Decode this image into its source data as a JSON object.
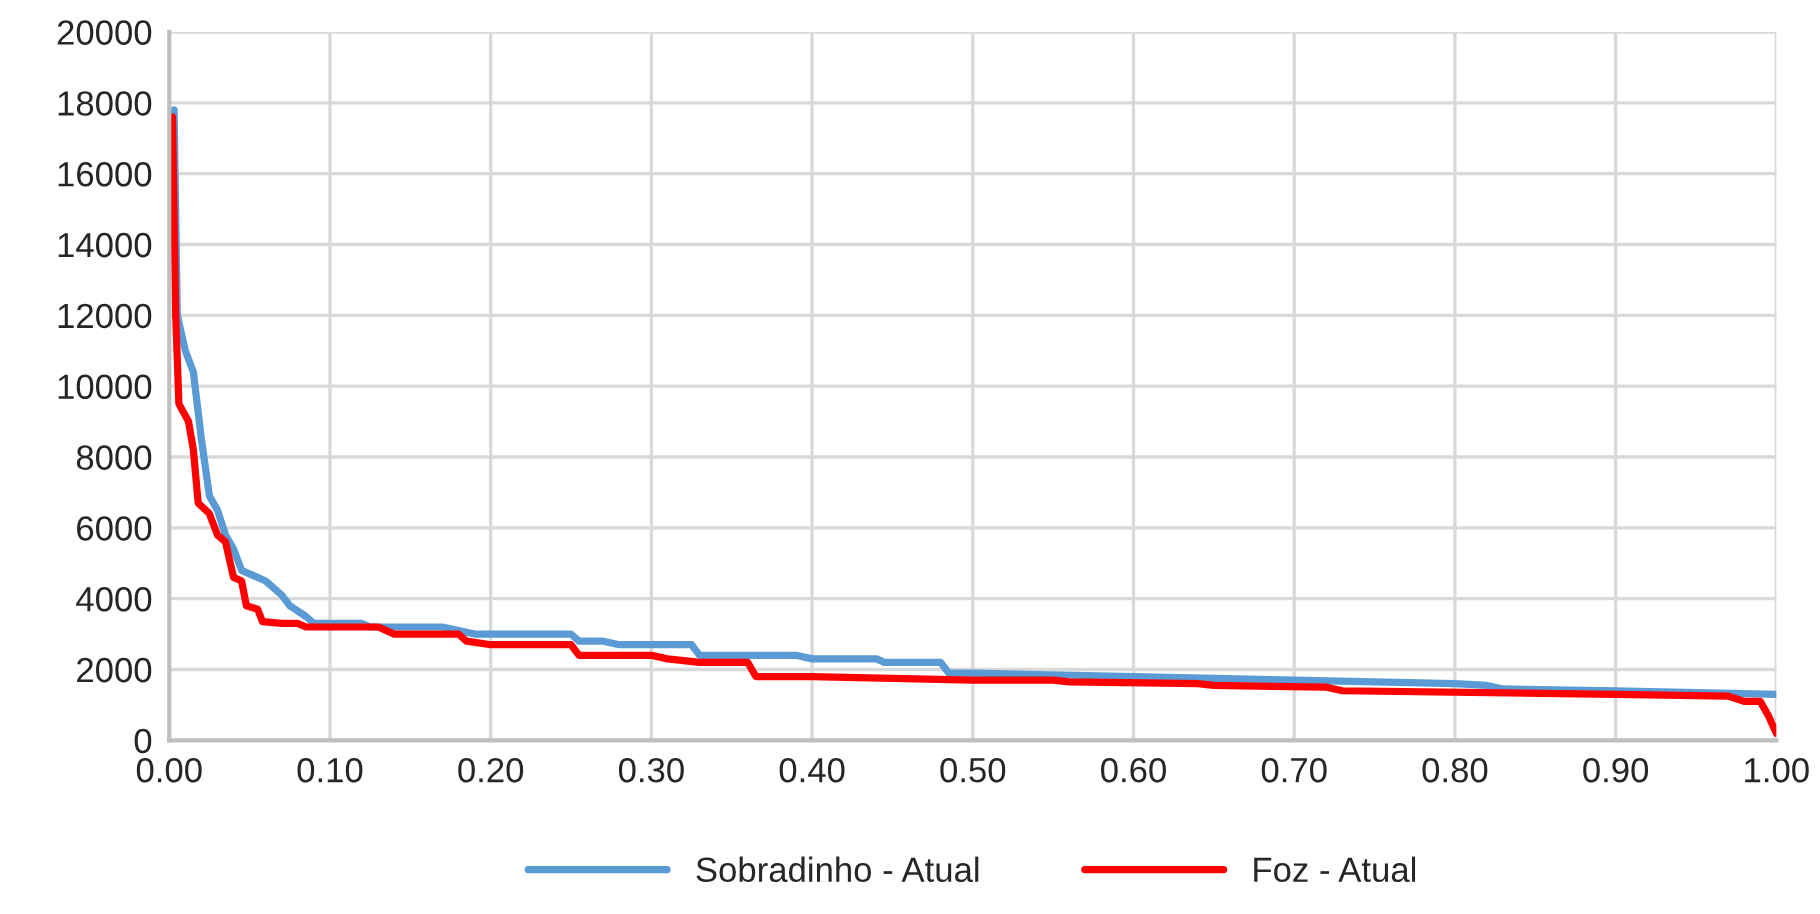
{
  "chart_data": {
    "type": "line",
    "xlim": [
      0,
      1
    ],
    "xticks": [
      {
        "value": 0,
        "label": "0.00"
      },
      {
        "value": 0.1,
        "label": "0.10"
      },
      {
        "value": 0.2,
        "label": "0.20"
      },
      {
        "value": 0.3,
        "label": "0.30"
      },
      {
        "value": 0.4,
        "label": "0.40"
      },
      {
        "value": 0.5,
        "label": "0.50"
      },
      {
        "value": 0.6,
        "label": "0.60"
      },
      {
        "value": 0.7,
        "label": "0.70"
      },
      {
        "value": 0.8,
        "label": "0.80"
      },
      {
        "value": 0.9,
        "label": "0.90"
      },
      {
        "value": 1,
        "label": "1.00"
      }
    ],
    "ylim": [
      0,
      20000
    ],
    "yticks": [
      0,
      2000,
      4000,
      6000,
      8000,
      10000,
      12000,
      14000,
      16000,
      18000,
      20000
    ],
    "grid": true,
    "legend": "bottom",
    "marker": "none",
    "line_style": "solid",
    "series": [
      {
        "name": "Sobradinho - Atual",
        "color": "#5b9bd5",
        "x": [
          0.003,
          0.005,
          0.01,
          0.015,
          0.02,
          0.025,
          0.03,
          0.035,
          0.04,
          0.045,
          0.05,
          0.06,
          0.07,
          0.075,
          0.085,
          0.09,
          0.12,
          0.125,
          0.17,
          0.18,
          0.19,
          0.25,
          0.255,
          0.27,
          0.28,
          0.325,
          0.33,
          0.39,
          0.4,
          0.44,
          0.445,
          0.48,
          0.485,
          0.5,
          0.6,
          0.7,
          0.8,
          0.82,
          0.83,
          0.9,
          1.0
        ],
        "values": [
          17800,
          12000,
          11000,
          10400,
          8500,
          6900,
          6500,
          5800,
          5400,
          4800,
          4700,
          4500,
          4100,
          3800,
          3500,
          3300,
          3300,
          3200,
          3200,
          3100,
          3000,
          3000,
          2800,
          2800,
          2700,
          2700,
          2400,
          2400,
          2300,
          2300,
          2200,
          2200,
          1900,
          1900,
          1800,
          1700,
          1600,
          1550,
          1450,
          1400,
          1300
        ]
      },
      {
        "name": "Foz - Atual",
        "color": "#ff0000",
        "x": [
          0.002,
          0.004,
          0.006,
          0.012,
          0.015,
          0.018,
          0.025,
          0.03,
          0.035,
          0.04,
          0.045,
          0.048,
          0.055,
          0.058,
          0.07,
          0.08,
          0.085,
          0.13,
          0.14,
          0.18,
          0.185,
          0.2,
          0.25,
          0.255,
          0.3,
          0.31,
          0.33,
          0.36,
          0.365,
          0.4,
          0.5,
          0.55,
          0.56,
          0.64,
          0.65,
          0.72,
          0.73,
          0.9,
          0.97,
          0.98,
          0.99,
          0.995,
          1.0
        ],
        "values": [
          17600,
          12000,
          9500,
          9000,
          8200,
          6700,
          6400,
          5800,
          5600,
          4600,
          4500,
          3800,
          3700,
          3350,
          3300,
          3300,
          3200,
          3200,
          3000,
          3000,
          2800,
          2700,
          2700,
          2400,
          2400,
          2300,
          2200,
          2200,
          1800,
          1800,
          1700,
          1700,
          1650,
          1600,
          1550,
          1500,
          1400,
          1300,
          1250,
          1100,
          1100,
          700,
          200
        ]
      }
    ]
  }
}
